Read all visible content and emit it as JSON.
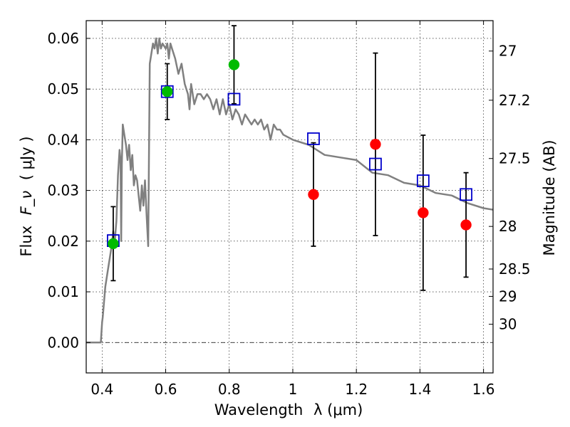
{
  "chart_data": {
    "type": "scatter",
    "xlabel": "Wavelength",
    "xlabel_symbol": "λ (μm)",
    "ylabel": "Flux",
    "ylabel_symbol": "F_ν",
    "ylabel_unit": "( μJy )",
    "y2label": "Magnitude (AB)",
    "xlim": [
      0.35,
      1.63
    ],
    "ylim": [
      -0.006,
      0.0635
    ],
    "grid": true,
    "xticks": [
      {
        "value": 0.4,
        "label": "0.4"
      },
      {
        "value": 0.6,
        "label": "0.6"
      },
      {
        "value": 0.8,
        "label": "0.8"
      },
      {
        "value": 1.0,
        "label": "1"
      },
      {
        "value": 1.2,
        "label": "1.2"
      },
      {
        "value": 1.4,
        "label": "1.4"
      },
      {
        "value": 1.6,
        "label": "1.6"
      }
    ],
    "yticks": [
      {
        "value": 0.0,
        "label": "0.00"
      },
      {
        "value": 0.01,
        "label": "0.01"
      },
      {
        "value": 0.02,
        "label": "0.02"
      },
      {
        "value": 0.03,
        "label": "0.03"
      },
      {
        "value": 0.04,
        "label": "0.04"
      },
      {
        "value": 0.05,
        "label": "0.05"
      },
      {
        "value": 0.06,
        "label": "0.06"
      }
    ],
    "y2ticks": [
      {
        "flux": 0.0575,
        "label": "27"
      },
      {
        "flux": 0.0478,
        "label": "27.2"
      },
      {
        "flux": 0.0363,
        "label": "27.5"
      },
      {
        "flux": 0.0229,
        "label": "28"
      },
      {
        "flux": 0.0145,
        "label": "28.5"
      },
      {
        "flux": 0.0091,
        "label": "29"
      },
      {
        "flux": 0.0036,
        "label": "30"
      }
    ],
    "series": [
      {
        "kind": "line",
        "color": "#808080",
        "x": [
          0.35,
          0.396,
          0.4,
          0.402,
          0.41,
          0.42,
          0.43,
          0.435,
          0.44,
          0.445,
          0.45,
          0.455,
          0.458,
          0.46,
          0.462,
          0.465,
          0.47,
          0.475,
          0.48,
          0.485,
          0.49,
          0.495,
          0.5,
          0.505,
          0.51,
          0.515,
          0.52,
          0.525,
          0.53,
          0.535,
          0.54,
          0.545,
          0.55,
          0.56,
          0.565,
          0.57,
          0.575,
          0.58,
          0.585,
          0.59,
          0.6,
          0.605,
          0.61,
          0.615,
          0.62,
          0.63,
          0.64,
          0.65,
          0.66,
          0.67,
          0.675,
          0.68,
          0.69,
          0.7,
          0.71,
          0.72,
          0.73,
          0.74,
          0.75,
          0.76,
          0.77,
          0.78,
          0.79,
          0.8,
          0.81,
          0.82,
          0.83,
          0.84,
          0.85,
          0.86,
          0.87,
          0.88,
          0.89,
          0.9,
          0.91,
          0.92,
          0.93,
          0.94,
          0.95,
          0.96,
          0.97,
          1.0,
          1.05,
          1.1,
          1.15,
          1.2,
          1.25,
          1.3,
          1.35,
          1.4,
          1.45,
          1.5,
          1.55,
          1.6,
          1.63
        ],
        "values": [
          0.0,
          0.0,
          0.004,
          0.005,
          0.011,
          0.015,
          0.019,
          0.022,
          0.02,
          0.024,
          0.033,
          0.038,
          0.036,
          0.02,
          0.035,
          0.043,
          0.041,
          0.039,
          0.036,
          0.039,
          0.034,
          0.037,
          0.031,
          0.033,
          0.032,
          0.029,
          0.026,
          0.031,
          0.027,
          0.032,
          0.025,
          0.019,
          0.055,
          0.059,
          0.058,
          0.06,
          0.057,
          0.06,
          0.058,
          0.059,
          0.058,
          0.059,
          0.056,
          0.059,
          0.058,
          0.056,
          0.053,
          0.055,
          0.051,
          0.049,
          0.046,
          0.051,
          0.047,
          0.049,
          0.049,
          0.048,
          0.049,
          0.048,
          0.046,
          0.048,
          0.045,
          0.048,
          0.045,
          0.047,
          0.044,
          0.046,
          0.045,
          0.043,
          0.045,
          0.044,
          0.043,
          0.044,
          0.043,
          0.044,
          0.042,
          0.043,
          0.04,
          0.043,
          0.042,
          0.042,
          0.041,
          0.04,
          0.039,
          0.037,
          0.0365,
          0.036,
          0.0335,
          0.033,
          0.0315,
          0.031,
          0.0295,
          0.029,
          0.0275,
          0.0265,
          0.0262
        ]
      },
      {
        "kind": "errorbar",
        "color": "#000000",
        "x": [
          0.435,
          0.605,
          0.815,
          1.065,
          1.26,
          1.41,
          1.545
        ],
        "values": [
          0.0195,
          0.0495,
          0.0548,
          0.0292,
          0.0391,
          0.0256,
          0.0232
        ],
        "err": [
          0.0073,
          0.0055,
          0.0077,
          0.0102,
          0.018,
          0.0153,
          0.0103
        ]
      },
      {
        "kind": "marker-square-open",
        "color": "#0000cc",
        "x": [
          0.435,
          0.605,
          0.815,
          1.065,
          1.26,
          1.41,
          1.545
        ],
        "values": [
          0.0201,
          0.0495,
          0.048,
          0.0402,
          0.0352,
          0.0319,
          0.0292
        ]
      },
      {
        "kind": "marker-circle",
        "color": "#00bb00",
        "x": [
          0.435,
          0.605,
          0.815
        ],
        "values": [
          0.0195,
          0.0495,
          0.0548
        ]
      },
      {
        "kind": "marker-circle",
        "color": "#ff0000",
        "x": [
          1.065,
          1.26,
          1.41,
          1.545
        ],
        "values": [
          0.0292,
          0.0391,
          0.0256,
          0.0232
        ]
      }
    ]
  }
}
